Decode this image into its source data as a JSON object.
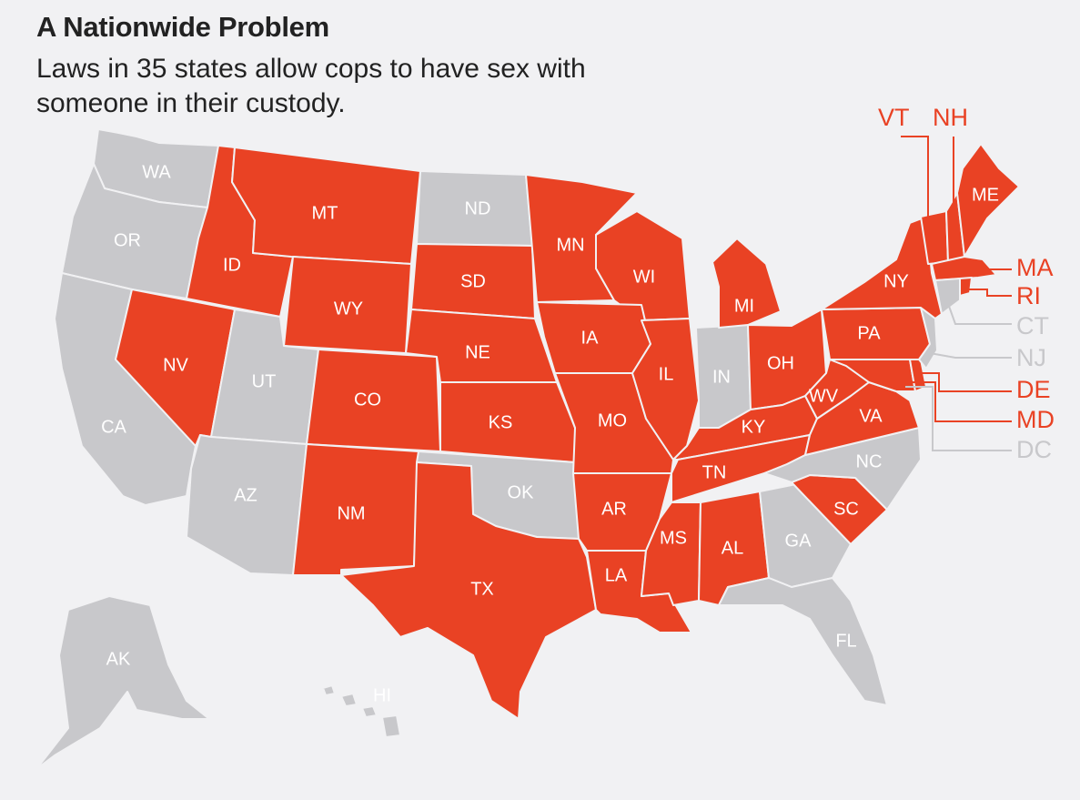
{
  "title": "A Nationwide Problem",
  "subtitle": "Laws in 35 states allow cops to have sex with someone in their custody.",
  "colors": {
    "allowed": "#e94224",
    "not_allowed": "#c8c8cb",
    "background": "#f1f1f3"
  },
  "states": {
    "WA": {
      "label": "WA",
      "allowed": false
    },
    "OR": {
      "label": "OR",
      "allowed": false
    },
    "CA": {
      "label": "CA",
      "allowed": false
    },
    "ID": {
      "label": "ID",
      "allowed": true
    },
    "NV": {
      "label": "NV",
      "allowed": true
    },
    "MT": {
      "label": "MT",
      "allowed": true
    },
    "WY": {
      "label": "WY",
      "allowed": true
    },
    "UT": {
      "label": "UT",
      "allowed": false
    },
    "AZ": {
      "label": "AZ",
      "allowed": false
    },
    "CO": {
      "label": "CO",
      "allowed": true
    },
    "NM": {
      "label": "NM",
      "allowed": true
    },
    "ND": {
      "label": "ND",
      "allowed": false
    },
    "SD": {
      "label": "SD",
      "allowed": true
    },
    "NE": {
      "label": "NE",
      "allowed": true
    },
    "KS": {
      "label": "KS",
      "allowed": true
    },
    "OK": {
      "label": "OK",
      "allowed": false
    },
    "TX": {
      "label": "TX",
      "allowed": true
    },
    "MN": {
      "label": "MN",
      "allowed": true
    },
    "IA": {
      "label": "IA",
      "allowed": true
    },
    "MO": {
      "label": "MO",
      "allowed": true
    },
    "AR": {
      "label": "AR",
      "allowed": true
    },
    "LA": {
      "label": "LA",
      "allowed": true
    },
    "WI": {
      "label": "WI",
      "allowed": true
    },
    "IL": {
      "label": "IL",
      "allowed": true
    },
    "MI": {
      "label": "MI",
      "allowed": true
    },
    "IN": {
      "label": "IN",
      "allowed": false
    },
    "OH": {
      "label": "OH",
      "allowed": true
    },
    "KY": {
      "label": "KY",
      "allowed": true
    },
    "TN": {
      "label": "TN",
      "allowed": true
    },
    "MS": {
      "label": "MS",
      "allowed": true
    },
    "AL": {
      "label": "AL",
      "allowed": true
    },
    "GA": {
      "label": "GA",
      "allowed": false
    },
    "FL": {
      "label": "FL",
      "allowed": false
    },
    "SC": {
      "label": "SC",
      "allowed": true
    },
    "NC": {
      "label": "NC",
      "allowed": false
    },
    "VA": {
      "label": "VA",
      "allowed": true
    },
    "WV": {
      "label": "WV",
      "allowed": true
    },
    "PA": {
      "label": "PA",
      "allowed": true
    },
    "NY": {
      "label": "NY",
      "allowed": true
    },
    "ME": {
      "label": "ME",
      "allowed": true
    },
    "VT": {
      "label": "VT",
      "allowed": true
    },
    "NH": {
      "label": "NH",
      "allowed": true
    },
    "MA": {
      "label": "MA",
      "allowed": true
    },
    "RI": {
      "label": "RI",
      "allowed": true
    },
    "CT": {
      "label": "CT",
      "allowed": false
    },
    "NJ": {
      "label": "NJ",
      "allowed": false
    },
    "DE": {
      "label": "DE",
      "allowed": true
    },
    "MD": {
      "label": "MD",
      "allowed": true
    },
    "DC": {
      "label": "DC",
      "allowed": false
    },
    "AK": {
      "label": "AK",
      "allowed": false
    },
    "HI": {
      "label": "HI",
      "allowed": false
    }
  }
}
